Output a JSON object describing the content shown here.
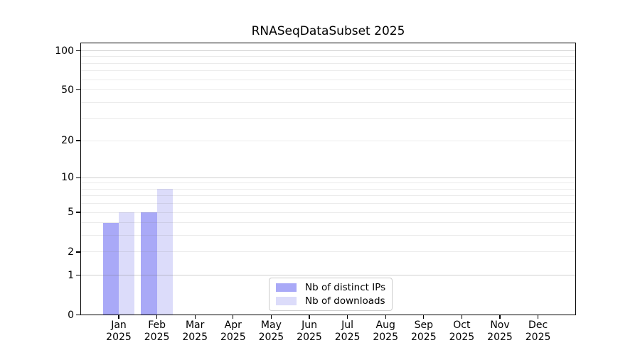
{
  "chart_data": {
    "type": "bar",
    "title": "RNASeqDataSubset 2025",
    "categories": [
      "Jan",
      "Feb",
      "Mar",
      "Apr",
      "May",
      "Jun",
      "Jul",
      "Aug",
      "Sep",
      "Oct",
      "Nov",
      "Dec"
    ],
    "year_label": "2025",
    "series": [
      {
        "name": "Nb of distinct IPs",
        "color": "#a9a9f7",
        "values": [
          4,
          5,
          0,
          0,
          0,
          0,
          0,
          0,
          0,
          0,
          0,
          0
        ]
      },
      {
        "name": "Nb of downloads",
        "color": "#dcdcfa",
        "values": [
          5,
          8,
          0,
          0,
          0,
          0,
          0,
          0,
          0,
          0,
          0,
          0
        ]
      }
    ],
    "y_axis": {
      "scale": "log1p",
      "tick_values": [
        0,
        1,
        2,
        5,
        10,
        20,
        50,
        100
      ],
      "major_gridlines": [
        1,
        10,
        100
      ],
      "minor_gridlines": [
        2,
        3,
        4,
        5,
        6,
        7,
        8,
        9,
        20,
        30,
        40,
        50,
        60,
        70,
        80,
        90
      ]
    },
    "xlabel": "",
    "ylabel": "",
    "grid": true,
    "legend_position": "lower center",
    "colors": {
      "background": "#ffffff",
      "spine": "#000000",
      "grid_minor": "#ececec",
      "grid_major": "#c9c9c9"
    }
  }
}
